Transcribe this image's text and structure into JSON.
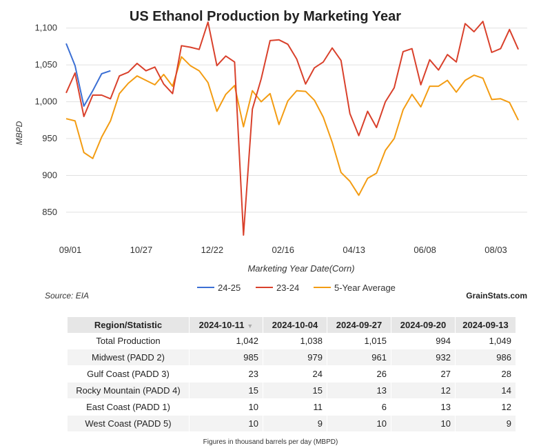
{
  "chart_data": {
    "type": "line",
    "title": "US Ethanol Production by Marketing Year",
    "xlabel": "Marketing Year Date(Corn)",
    "ylabel": "MBPD",
    "x_tick_labels": [
      "09/01",
      "10/27",
      "12/22",
      "02/16",
      "04/13",
      "06/08",
      "08/03"
    ],
    "y_ticks": [
      850,
      900,
      950,
      1000,
      1050,
      1100
    ],
    "ylim": [
      820,
      1110
    ],
    "n_weeks": 53,
    "grid": "horizontal",
    "legend_position": "bottom",
    "series": [
      {
        "name": "24-25",
        "color": "#3b6fd4",
        "values": [
          1079,
          1049,
          994,
          1015,
          1038,
          1042
        ]
      },
      {
        "name": "23-24",
        "color": "#d9402b",
        "values": [
          1012,
          1039,
          980,
          1009,
          1009,
          1004,
          1035,
          1040,
          1052,
          1042,
          1047,
          1024,
          1011,
          1076,
          1074,
          1071,
          1108,
          1049,
          1062,
          1054,
          819,
          990,
          1031,
          1083,
          1084,
          1078,
          1058,
          1024,
          1046,
          1054,
          1073,
          1056,
          984,
          954,
          987,
          965,
          1000,
          1019,
          1068,
          1072,
          1023,
          1057,
          1043,
          1064,
          1054,
          1106,
          1095,
          1109,
          1067,
          1072,
          1098,
          1071
        ]
      },
      {
        "name": "5-Year Average",
        "color": "#f39c12",
        "values": [
          977,
          974,
          931,
          923,
          952,
          974,
          1011,
          1025,
          1035,
          1029,
          1023,
          1037,
          1021,
          1061,
          1049,
          1042,
          1026,
          987,
          1010,
          1022,
          966,
          1015,
          1000,
          1011,
          969,
          1001,
          1015,
          1014,
          1002,
          979,
          945,
          904,
          892,
          873,
          896,
          903,
          934,
          950,
          989,
          1010,
          993,
          1021,
          1021,
          1029,
          1013,
          1029,
          1036,
          1032,
          1003,
          1004,
          999,
          975
        ]
      }
    ]
  },
  "source_text": "Source: EIA",
  "brand_text": "GrainStats.com",
  "table": {
    "headers": [
      "Region/Statistic",
      "2024-10-11",
      "2024-10-04",
      "2024-09-27",
      "2024-09-20",
      "2024-09-13"
    ],
    "sorted_column": 1,
    "rows": [
      [
        "Total Production",
        "1,042",
        "1,038",
        "1,015",
        "994",
        "1,049"
      ],
      [
        "Midwest (PADD 2)",
        "985",
        "979",
        "961",
        "932",
        "986"
      ],
      [
        "Gulf Coast (PADD 3)",
        "23",
        "24",
        "26",
        "27",
        "28"
      ],
      [
        "Rocky Mountain (PADD 4)",
        "15",
        "15",
        "13",
        "12",
        "14"
      ],
      [
        "East Coast (PADD 1)",
        "10",
        "11",
        "6",
        "13",
        "12"
      ],
      [
        "West Coast (PADD 5)",
        "10",
        "9",
        "10",
        "10",
        "9"
      ]
    ]
  },
  "footnote": "Figures in thousand barrels per day (MBPD)",
  "icons": {
    "sort": "sort-descending-icon"
  }
}
